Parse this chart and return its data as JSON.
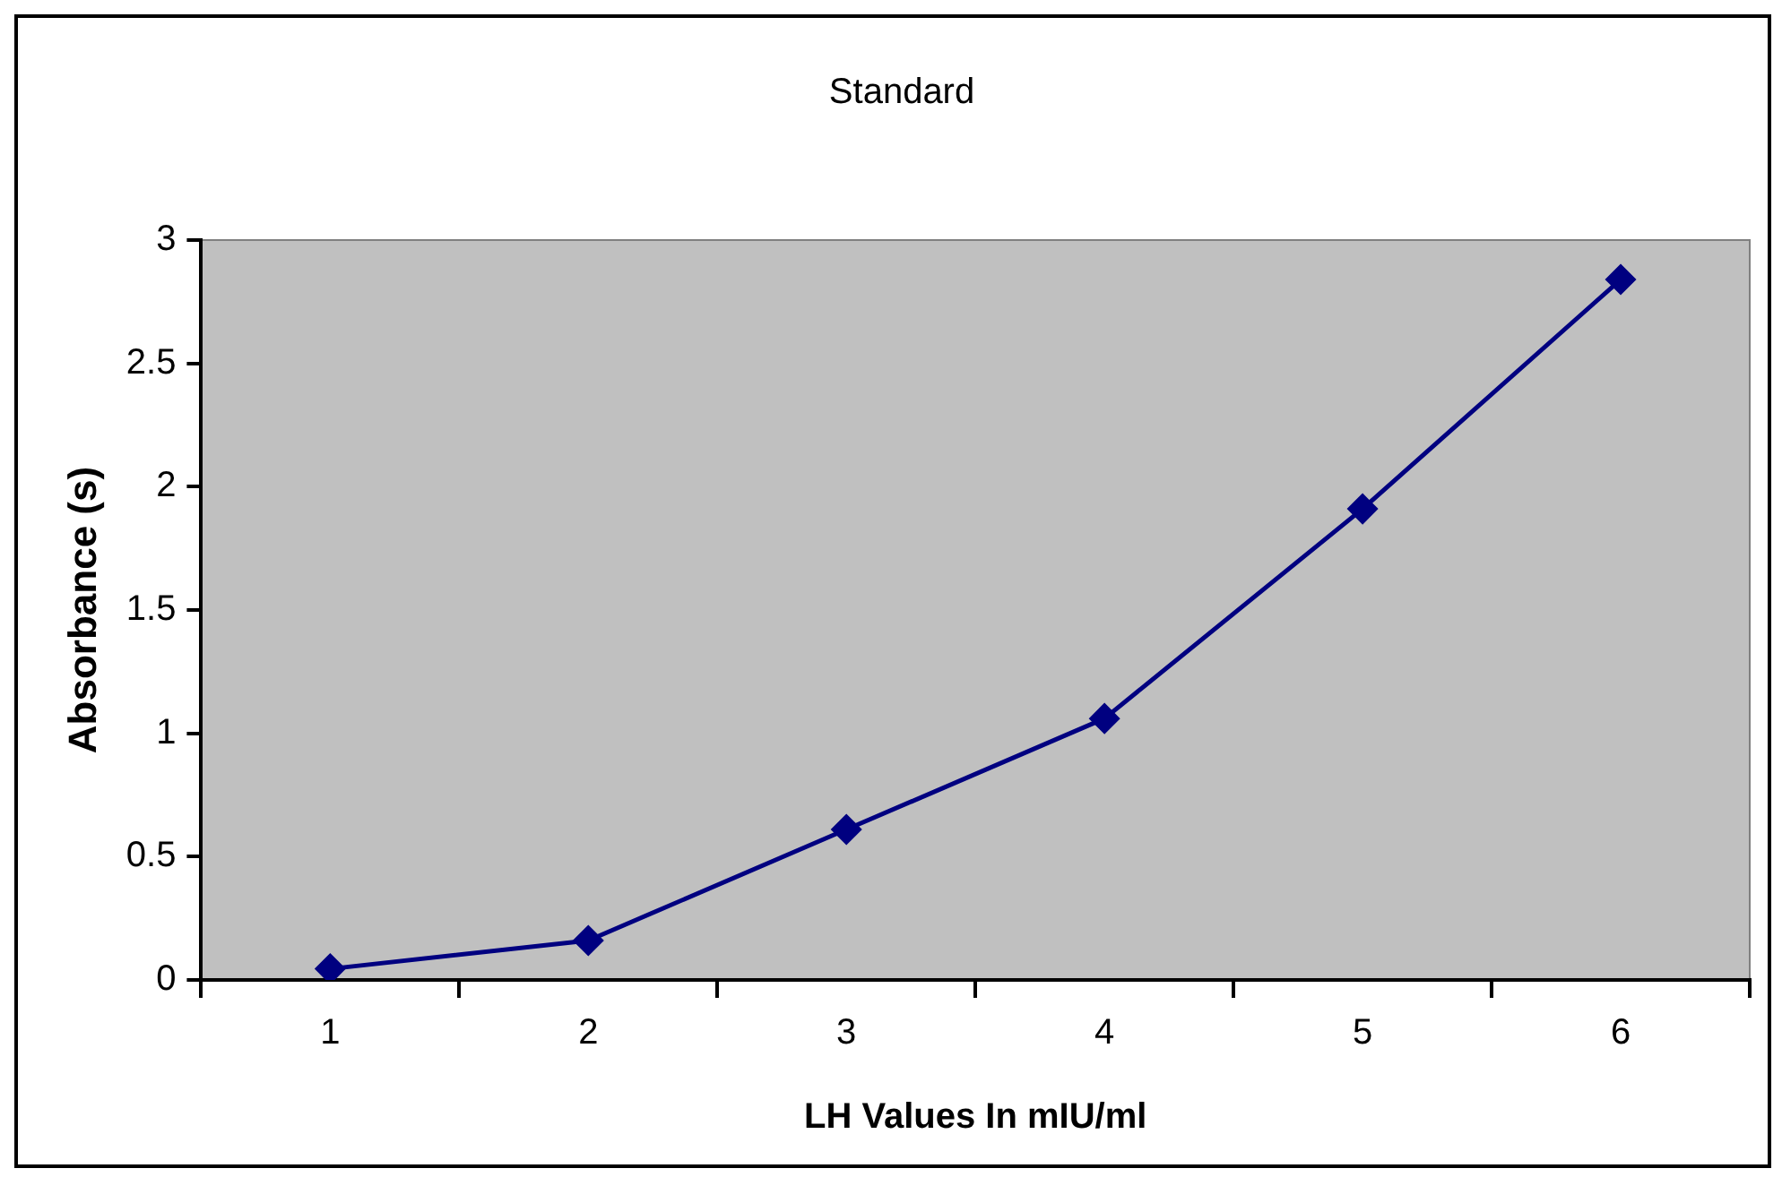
{
  "chart_data": {
    "type": "line",
    "title": "Standard",
    "xlabel": "LH Values In mIU/ml",
    "ylabel": "Absorbance (s)",
    "categories": [
      "1",
      "2",
      "3",
      "4",
      "5",
      "6"
    ],
    "series": [
      {
        "color": "#000080",
        "values": [
          0.045,
          0.16,
          0.61,
          1.06,
          1.91,
          2.84
        ]
      }
    ],
    "ylim": [
      0,
      3
    ],
    "yticks": [
      0,
      0.5,
      1,
      1.5,
      2,
      2.5,
      3
    ],
    "grid": false,
    "legend": false,
    "marker": "diamond",
    "line_style": "solid"
  }
}
